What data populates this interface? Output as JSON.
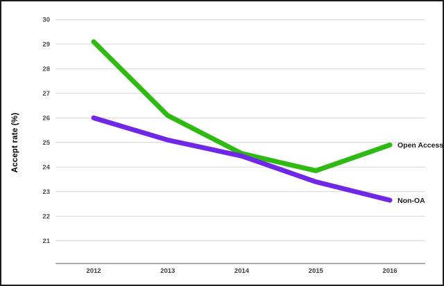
{
  "frame": {
    "background_color": "#ffffff",
    "border_color": "#1a1a1a"
  },
  "chart_data": {
    "type": "line",
    "title": "",
    "xlabel": "",
    "ylabel": "Accept rate (%)",
    "categories": [
      "2012",
      "2013",
      "2014",
      "2015",
      "2016"
    ],
    "y_ticks": [
      21,
      22,
      23,
      24,
      25,
      26,
      27,
      28,
      29,
      30
    ],
    "ylim": [
      20.1,
      30
    ],
    "grid": true,
    "grid_color": "#d6d6d6",
    "axis_line_color": "#8c8c8c",
    "legend_position": "end-of-line",
    "series": [
      {
        "name": "Open Access",
        "color": "#2eba12",
        "values": [
          29.1,
          26.1,
          24.55,
          23.85,
          24.9
        ]
      },
      {
        "name": "Non-OA",
        "color": "#7028e6",
        "values": [
          26.0,
          25.1,
          24.45,
          23.4,
          22.65
        ]
      }
    ]
  }
}
